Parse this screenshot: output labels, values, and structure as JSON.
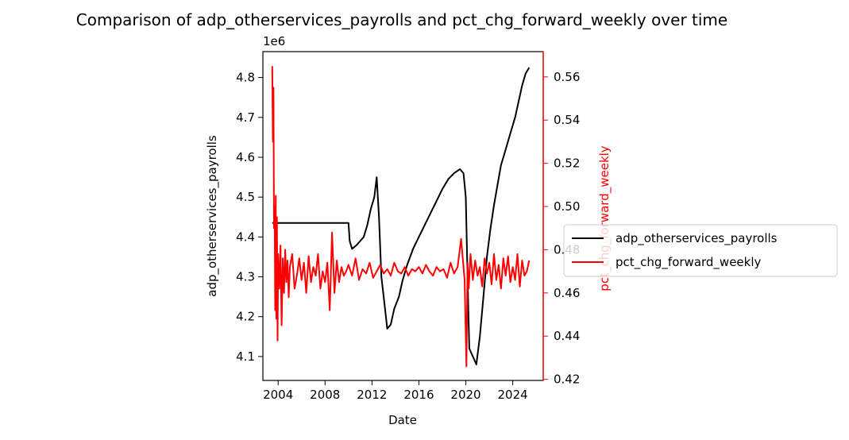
{
  "chart_data": {
    "type": "line",
    "title": "Comparison of adp_otherservices_payrolls and pct_chg_forward_weekly over time",
    "xlabel": "Date",
    "x_ticks": [
      "2004",
      "2008",
      "2012",
      "2016",
      "2020",
      "2024"
    ],
    "x_tick_values": [
      2004,
      2008,
      2012,
      2016,
      2020,
      2024
    ],
    "xlim": [
      2002.7,
      2026.6
    ],
    "y_left": {
      "label": "adp_otherservices_payrolls",
      "offset_text": "1e6",
      "ticks": [
        "4.1",
        "4.2",
        "4.3",
        "4.4",
        "4.5",
        "4.6",
        "4.7",
        "4.8"
      ],
      "tick_values": [
        4.1,
        4.2,
        4.3,
        4.4,
        4.5,
        4.6,
        4.7,
        4.8
      ],
      "ylim": [
        4.04,
        4.865
      ],
      "color": "#000000"
    },
    "y_right": {
      "label": "pct_chg_forward_weekly",
      "ticks": [
        "0.42",
        "0.44",
        "0.46",
        "0.48",
        "0.50",
        "0.52",
        "0.54",
        "0.56"
      ],
      "tick_values": [
        0.42,
        0.44,
        0.46,
        0.48,
        0.5,
        0.52,
        0.54,
        0.56
      ],
      "ylim": [
        0.4195,
        0.5717
      ],
      "color": "#ff0000"
    },
    "legend": {
      "placement": "right-outside",
      "entries": [
        "adp_otherservices_payrolls",
        "pct_chg_forward_weekly"
      ]
    },
    "grid": false,
    "series": [
      {
        "name": "adp_otherservices_payrolls",
        "axis": "left",
        "color": "#000000",
        "x": [
          2003.5,
          2004.0,
          2006.0,
          2008.0,
          2010.0,
          2010.1,
          2010.3,
          2010.7,
          2011.0,
          2011.3,
          2011.6,
          2011.9,
          2012.2,
          2012.4,
          2012.6,
          2012.8,
          2013.0,
          2013.3,
          2013.6,
          2013.9,
          2014.3,
          2014.6,
          2015.0,
          2015.5,
          2016.0,
          2016.5,
          2017.0,
          2017.5,
          2018.0,
          2018.5,
          2019.0,
          2019.5,
          2019.8,
          2020.0,
          2020.15,
          2020.3,
          2020.6,
          2020.9,
          2021.2,
          2021.5,
          2021.8,
          2022.1,
          2022.4,
          2022.7,
          2023.0,
          2023.3,
          2023.6,
          2023.9,
          2024.2,
          2024.5,
          2024.8,
          2025.1,
          2025.4
        ],
        "y": [
          4.435,
          4.435,
          4.435,
          4.435,
          4.435,
          4.39,
          4.37,
          4.38,
          4.39,
          4.4,
          4.43,
          4.47,
          4.5,
          4.55,
          4.45,
          4.3,
          4.25,
          4.17,
          4.18,
          4.22,
          4.25,
          4.29,
          4.33,
          4.37,
          4.4,
          4.43,
          4.46,
          4.49,
          4.52,
          4.545,
          4.56,
          4.57,
          4.56,
          4.5,
          4.3,
          4.12,
          4.1,
          4.08,
          4.15,
          4.25,
          4.35,
          4.42,
          4.48,
          4.53,
          4.58,
          4.61,
          4.64,
          4.67,
          4.7,
          4.74,
          4.78,
          4.81,
          4.825
        ]
      },
      {
        "name": "pct_chg_forward_weekly",
        "axis": "right",
        "color": "#ff0000",
        "x": [
          2003.5,
          2003.55,
          2003.6,
          2003.65,
          2003.7,
          2003.75,
          2003.8,
          2003.85,
          2003.9,
          2003.95,
          2004.0,
          2004.1,
          2004.2,
          2004.3,
          2004.4,
          2004.5,
          2004.6,
          2004.7,
          2004.8,
          2004.9,
          2005.0,
          2005.2,
          2005.4,
          2005.6,
          2005.8,
          2006.0,
          2006.2,
          2006.4,
          2006.6,
          2006.8,
          2007.0,
          2007.2,
          2007.4,
          2007.6,
          2007.8,
          2008.0,
          2008.2,
          2008.4,
          2008.6,
          2008.8,
          2009.0,
          2009.2,
          2009.4,
          2009.6,
          2009.8,
          2010.0,
          2010.3,
          2010.6,
          2010.9,
          2011.2,
          2011.5,
          2011.8,
          2012.1,
          2012.4,
          2012.7,
          2013.0,
          2013.3,
          2013.6,
          2013.9,
          2014.2,
          2014.5,
          2014.8,
          2015.1,
          2015.4,
          2015.7,
          2016.0,
          2016.3,
          2016.6,
          2016.9,
          2017.2,
          2017.5,
          2017.8,
          2018.1,
          2018.4,
          2018.7,
          2019.0,
          2019.3,
          2019.6,
          2019.9,
          2020.05,
          2020.15,
          2020.25,
          2020.4,
          2020.6,
          2020.8,
          2021.0,
          2021.2,
          2021.4,
          2021.6,
          2021.8,
          2022.0,
          2022.2,
          2022.4,
          2022.6,
          2022.8,
          2023.0,
          2023.2,
          2023.4,
          2023.6,
          2023.8,
          2024.0,
          2024.2,
          2024.4,
          2024.6,
          2024.8,
          2025.0,
          2025.2,
          2025.4
        ],
        "y": [
          0.565,
          0.53,
          0.555,
          0.49,
          0.5,
          0.452,
          0.505,
          0.448,
          0.495,
          0.438,
          0.478,
          0.462,
          0.482,
          0.445,
          0.476,
          0.46,
          0.48,
          0.465,
          0.475,
          0.458,
          0.472,
          0.478,
          0.462,
          0.468,
          0.476,
          0.466,
          0.474,
          0.46,
          0.477,
          0.465,
          0.472,
          0.468,
          0.478,
          0.462,
          0.47,
          0.465,
          0.474,
          0.452,
          0.488,
          0.46,
          0.475,
          0.465,
          0.472,
          0.468,
          0.47,
          0.473,
          0.468,
          0.476,
          0.466,
          0.471,
          0.469,
          0.474,
          0.467,
          0.47,
          0.473,
          0.469,
          0.471,
          0.468,
          0.474,
          0.47,
          0.469,
          0.472,
          0.468,
          0.471,
          0.47,
          0.472,
          0.469,
          0.473,
          0.47,
          0.468,
          0.472,
          0.47,
          0.471,
          0.467,
          0.474,
          0.469,
          0.472,
          0.485,
          0.466,
          0.426,
          0.474,
          0.462,
          0.478,
          0.466,
          0.475,
          0.468,
          0.472,
          0.463,
          0.476,
          0.469,
          0.474,
          0.464,
          0.478,
          0.466,
          0.473,
          0.462,
          0.476,
          0.468,
          0.477,
          0.465,
          0.472,
          0.466,
          0.478,
          0.463,
          0.475,
          0.468,
          0.47,
          0.475
        ]
      }
    ]
  }
}
